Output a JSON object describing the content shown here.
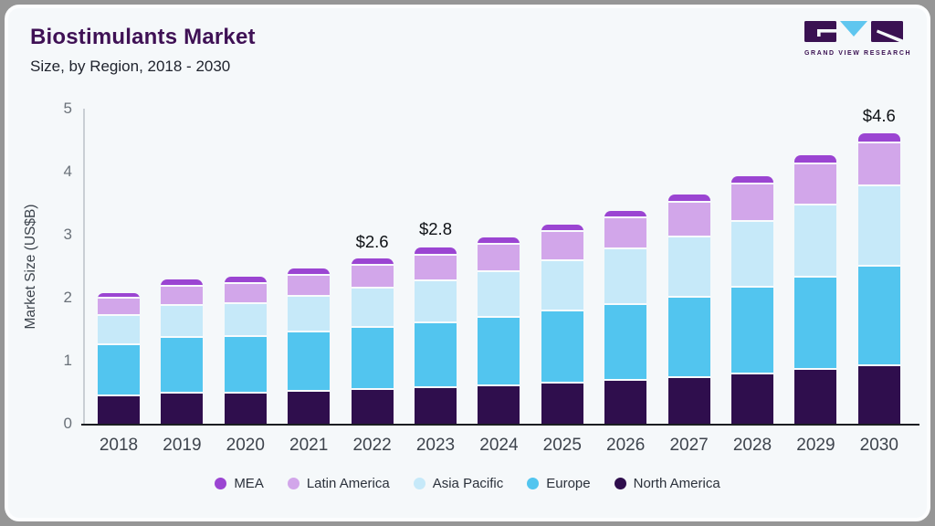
{
  "header": {
    "title": "Biostimulants Market",
    "subtitle": "Size, by Region, 2018 - 2030"
  },
  "logo": {
    "caption": "GRAND VIEW RESEARCH",
    "block_color": "#3a1152",
    "triangle_color": "#5fc6ef"
  },
  "chart_data": {
    "type": "bar",
    "stacked": true,
    "title": "Biostimulants Market Size, by Region, 2018 - 2030",
    "ylabel": "Market Size (US$B)",
    "xlabel": "",
    "ylim": [
      0,
      5
    ],
    "yticks": [
      0,
      1,
      2,
      3,
      4,
      5
    ],
    "grid": false,
    "legend_position": "bottom",
    "categories": [
      "2018",
      "2019",
      "2020",
      "2021",
      "2022",
      "2023",
      "2024",
      "2025",
      "2026",
      "2027",
      "2028",
      "2029",
      "2030"
    ],
    "series": [
      {
        "name": "North America",
        "color": "#2f0e4d",
        "values": [
          0.47,
          0.5,
          0.5,
          0.53,
          0.56,
          0.59,
          0.62,
          0.66,
          0.71,
          0.76,
          0.81,
          0.88,
          0.94
        ]
      },
      {
        "name": "Europe",
        "color": "#52c5ef",
        "values": [
          0.81,
          0.88,
          0.9,
          0.94,
          0.98,
          1.03,
          1.08,
          1.14,
          1.21,
          1.28,
          1.37,
          1.46,
          1.58
        ]
      },
      {
        "name": "Asia Pacific",
        "color": "#c6e9f9",
        "values": [
          0.46,
          0.51,
          0.52,
          0.56,
          0.62,
          0.67,
          0.72,
          0.79,
          0.88,
          0.96,
          1.05,
          1.14,
          1.27
        ]
      },
      {
        "name": "Latin America",
        "color": "#d2a6ea",
        "values": [
          0.28,
          0.31,
          0.32,
          0.34,
          0.36,
          0.41,
          0.44,
          0.47,
          0.49,
          0.55,
          0.6,
          0.65,
          0.68
        ]
      },
      {
        "name": "MEA",
        "color": "#9b45d2",
        "values": [
          0.06,
          0.08,
          0.09,
          0.08,
          0.08,
          0.1,
          0.09,
          0.09,
          0.09,
          0.1,
          0.1,
          0.12,
          0.13
        ]
      }
    ],
    "totals": [
      2.08,
      2.28,
      2.33,
      2.45,
      2.6,
      2.8,
      2.95,
      3.15,
      3.38,
      3.65,
      3.93,
      4.25,
      4.6
    ],
    "annotations": [
      {
        "category": "2022",
        "label": "$2.6"
      },
      {
        "category": "2023",
        "label": "$2.8"
      },
      {
        "category": "2030",
        "label": "$4.6"
      }
    ]
  },
  "legend": {
    "items": [
      {
        "label": "MEA",
        "color": "#9b45d2"
      },
      {
        "label": "Latin America",
        "color": "#d2a6ea"
      },
      {
        "label": "Asia Pacific",
        "color": "#c6e9f9"
      },
      {
        "label": "Europe",
        "color": "#52c5ef"
      },
      {
        "label": "North America",
        "color": "#2f0e4d"
      }
    ]
  }
}
